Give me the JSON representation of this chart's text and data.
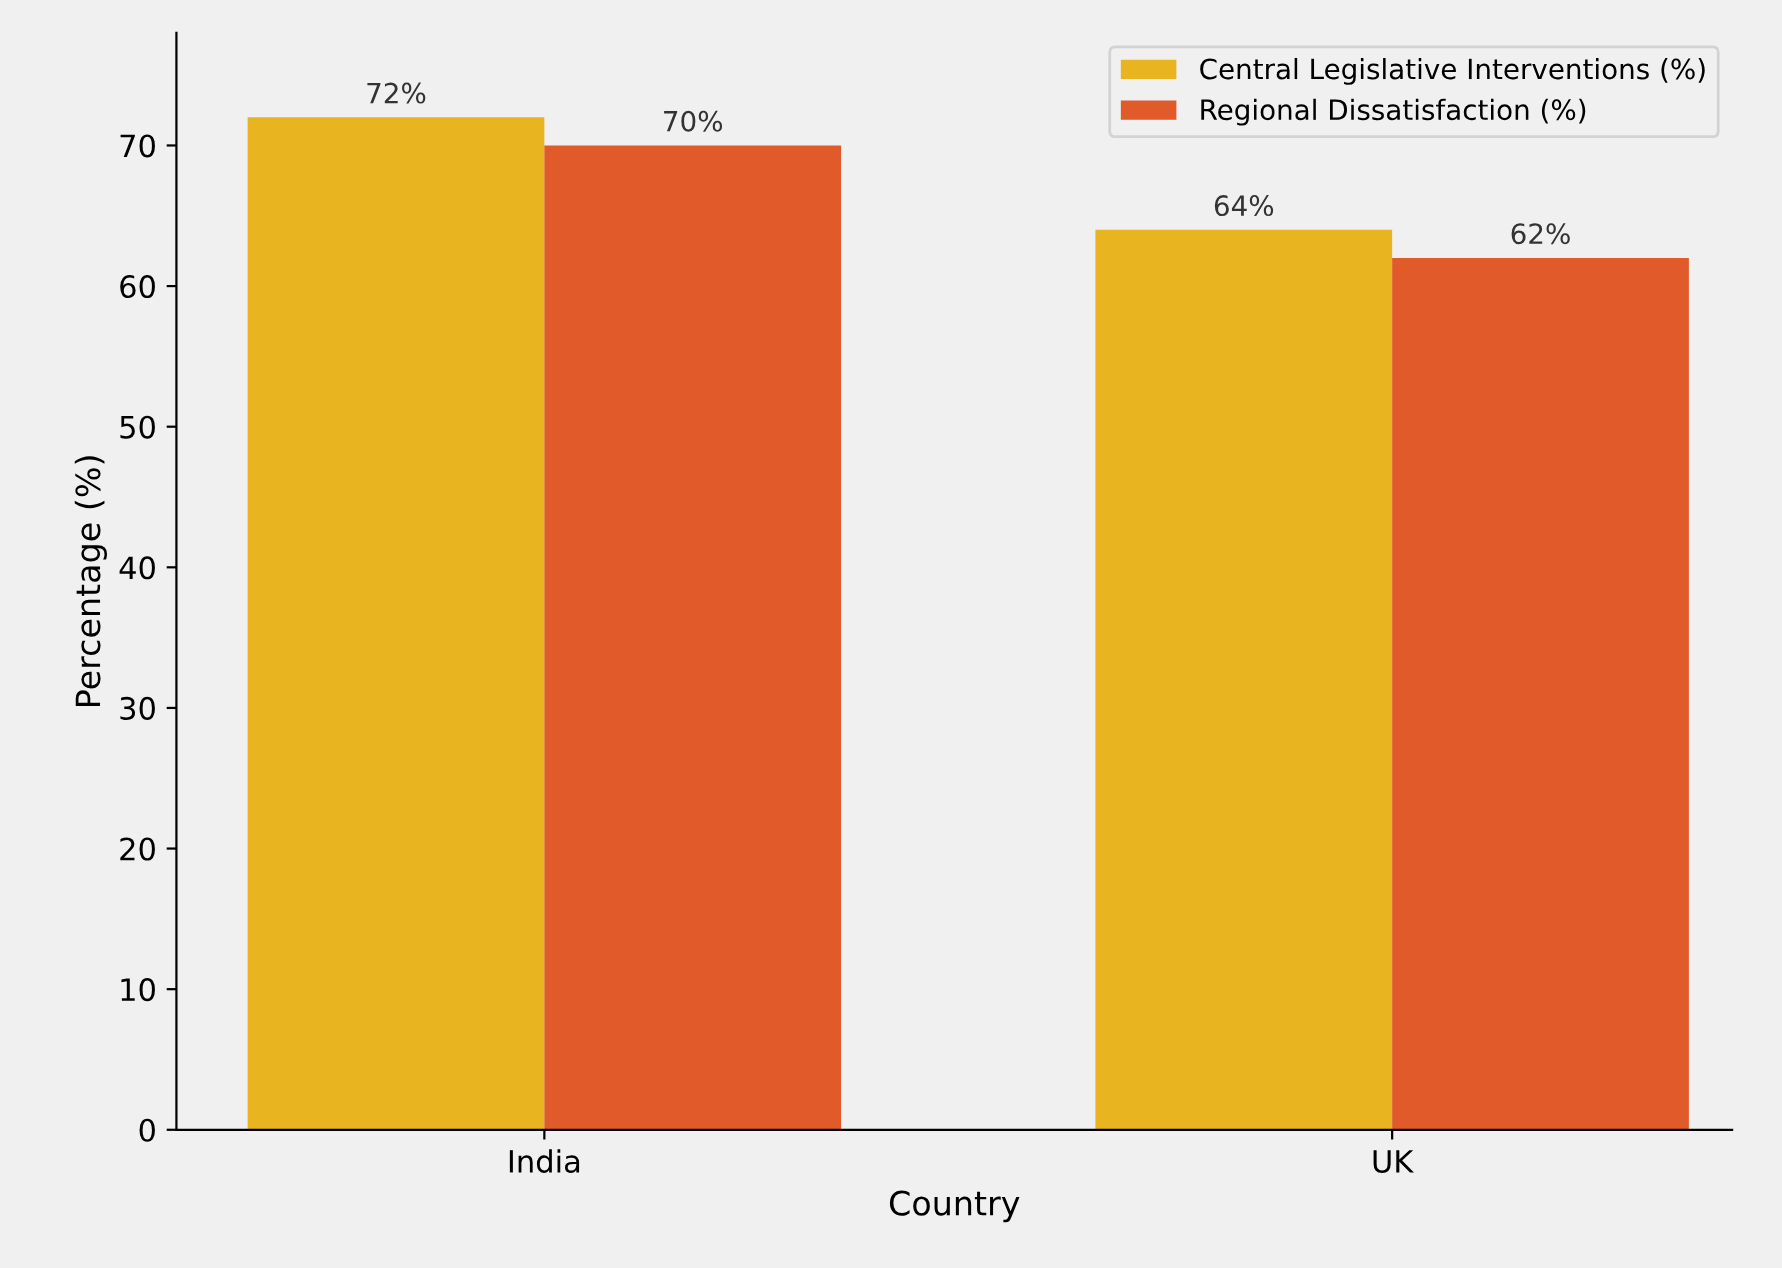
{
  "chart_data": {
    "type": "bar",
    "xlabel": "Country",
    "ylabel": "Percentage (%)",
    "categories": [
      "India",
      "UK"
    ],
    "series": [
      {
        "name": "Central Legislative Interventions (%)",
        "color": "#e8b420",
        "values": [
          72,
          64
        ],
        "value_labels": [
          "72%",
          "64%"
        ]
      },
      {
        "name": "Regional Dissatisfaction (%)",
        "color": "#e05a2a",
        "values": [
          70,
          62
        ],
        "value_labels": [
          "70%",
          "62%"
        ]
      }
    ],
    "ylim": [
      0,
      78
    ],
    "yticks": [
      0,
      10,
      20,
      30,
      40,
      50,
      60,
      70
    ],
    "grid": false,
    "legend": "top right"
  }
}
